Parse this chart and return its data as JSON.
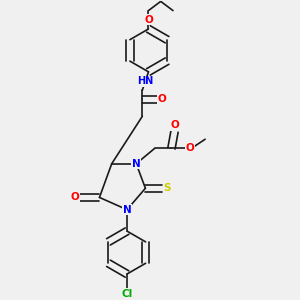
{
  "bg_color": "#f0f0f0",
  "bond_color": "#1a1a1a",
  "colors": {
    "N": "#0000ff",
    "O": "#ff0000",
    "S": "#cccc00",
    "Cl": "#00aa00",
    "H": "#008b8b"
  },
  "font_size": 7.5,
  "line_width": 1.2
}
